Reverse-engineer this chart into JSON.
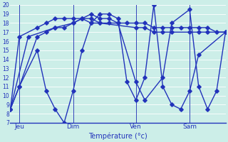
{
  "xlabel": "Température (°c)",
  "bg_color": "#cceee8",
  "line_color": "#2233bb",
  "marker": "D",
  "markersize": 2.8,
  "linewidth": 1.0,
  "ylim": [
    7,
    20
  ],
  "xlim": [
    0,
    24
  ],
  "yticks": [
    7,
    8,
    9,
    10,
    11,
    12,
    13,
    14,
    15,
    16,
    17,
    18,
    19,
    20
  ],
  "xtick_labels": [
    "Jeu",
    "Dim",
    "Ven",
    "Sam"
  ],
  "xtick_positions": [
    1,
    7,
    14,
    20
  ],
  "vlines": [
    1,
    7,
    14,
    20
  ],
  "series": [
    {
      "x": [
        0,
        1,
        3,
        4,
        5,
        6,
        7,
        8,
        9,
        10,
        11,
        12,
        13,
        14,
        15,
        16,
        17,
        18,
        19,
        20,
        21,
        22,
        23,
        24
      ],
      "y": [
        8.5,
        11.0,
        16.5,
        17.0,
        17.5,
        17.5,
        18.0,
        18.5,
        18.5,
        18.0,
        18.0,
        18.0,
        18.0,
        18.0,
        18.0,
        17.5,
        17.5,
        17.5,
        17.5,
        17.5,
        17.5,
        17.5,
        17.0,
        17.0
      ]
    },
    {
      "x": [
        0,
        2,
        5,
        7,
        8,
        9,
        10,
        11,
        12,
        14,
        15,
        17,
        18,
        20,
        21,
        22,
        23,
        24
      ],
      "y": [
        8.5,
        16.5,
        17.5,
        18.0,
        18.5,
        19.0,
        18.5,
        18.5,
        18.0,
        11.5,
        9.5,
        12.0,
        18.0,
        19.5,
        11.0,
        8.5,
        10.5,
        17.0
      ]
    },
    {
      "x": [
        0,
        1,
        3,
        4,
        5,
        6,
        7,
        8,
        9,
        10,
        11,
        12,
        13,
        14,
        15,
        16,
        17,
        18,
        19,
        20,
        21,
        24
      ],
      "y": [
        8.5,
        11.0,
        15.0,
        10.5,
        8.5,
        7.0,
        10.5,
        15.0,
        18.0,
        19.0,
        19.0,
        18.5,
        11.5,
        9.5,
        12.0,
        20.0,
        11.0,
        9.0,
        8.5,
        10.5,
        14.5,
        17.0
      ]
    },
    {
      "x": [
        0,
        1,
        3,
        4,
        5,
        6,
        7,
        8,
        9,
        10,
        14,
        15,
        16,
        17,
        18,
        20,
        21,
        22,
        24
      ],
      "y": [
        8.5,
        16.5,
        17.5,
        18.0,
        18.5,
        18.5,
        18.5,
        18.5,
        18.0,
        18.0,
        17.5,
        17.5,
        17.0,
        17.0,
        17.0,
        17.0,
        17.0,
        17.0,
        17.0
      ]
    }
  ]
}
